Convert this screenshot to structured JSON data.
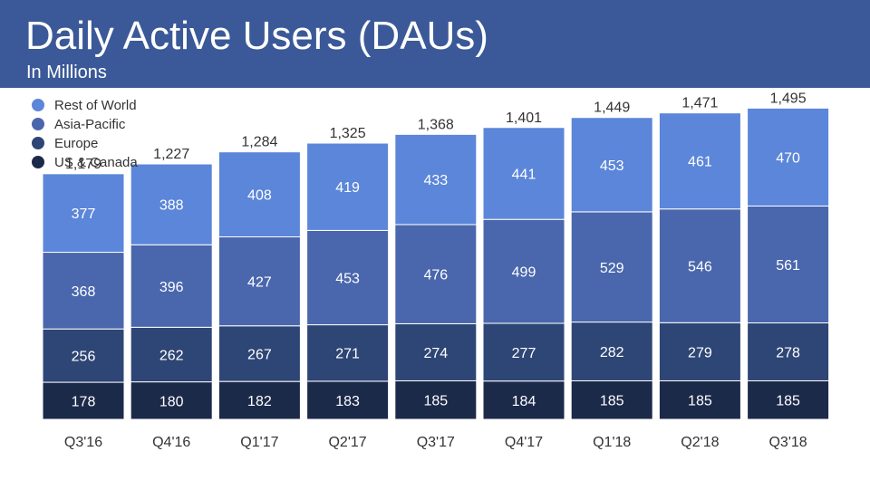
{
  "header": {
    "title": "Daily Active Users (DAUs)",
    "subtitle": "In Millions",
    "background": "#3b5998"
  },
  "chart_data": {
    "type": "bar",
    "stacked": true,
    "title": "Daily Active Users (DAUs)",
    "subtitle": "In Millions",
    "categories": [
      "Q3'16",
      "Q4'16",
      "Q1'17",
      "Q2'17",
      "Q3'17",
      "Q4'17",
      "Q1'18",
      "Q2'18",
      "Q3'18"
    ],
    "series": [
      {
        "name": "US & Canada",
        "color": "#1c2a4a",
        "values": [
          178,
          180,
          182,
          183,
          185,
          184,
          185,
          185,
          185
        ]
      },
      {
        "name": "Europe",
        "color": "#2e4675",
        "values": [
          256,
          262,
          267,
          271,
          274,
          277,
          282,
          279,
          278
        ]
      },
      {
        "name": "Asia-Pacific",
        "color": "#4a67ad",
        "values": [
          368,
          396,
          427,
          453,
          476,
          499,
          529,
          546,
          561
        ]
      },
      {
        "name": "Rest of World",
        "color": "#5b86d9",
        "values": [
          377,
          388,
          408,
          419,
          433,
          441,
          453,
          461,
          470
        ]
      }
    ],
    "totals": [
      "1,179",
      "1,227",
      "1,284",
      "1,325",
      "1,368",
      "1,401",
      "1,449",
      "1,471",
      "1,495"
    ],
    "legend_order": [
      "Rest of World",
      "Asia-Pacific",
      "Europe",
      "US & Canada"
    ],
    "legend_position": "top-left",
    "grid": false,
    "ylim": [
      0,
      1500
    ]
  }
}
